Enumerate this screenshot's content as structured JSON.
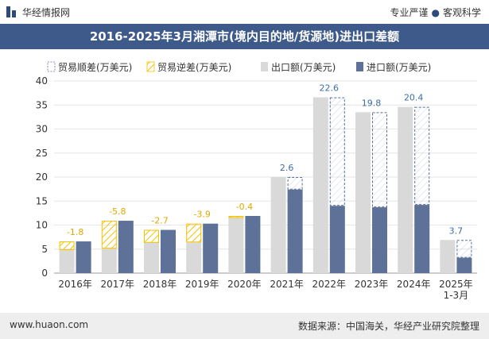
{
  "header": {
    "brand": "华经情报网",
    "tagline_left": "专业严谨",
    "tagline_right": "客观科学"
  },
  "title": "2016-2025年3月湘潭市(境内目的地/货源地)进出口差额",
  "footer": {
    "site": "www.huaon.com",
    "source": "数据来源：中国海关，华经产业研究院整理"
  },
  "colors": {
    "export": "#d9d9d9",
    "import": "#5d7199",
    "surplus_border": "#5d7199",
    "deficit_border": "#f5c200",
    "label_surplus": "#3b6ea8",
    "label_deficit": "#e0a800",
    "title_bg": "#3e5a8a"
  },
  "chart_data": {
    "type": "bar",
    "categories": [
      "2016年",
      "2017年",
      "2018年",
      "2019年",
      "2020年",
      "2021年",
      "2022年",
      "2023年",
      "2024年",
      "2025年\n1-3月"
    ],
    "series": [
      {
        "name": "出口额(万美元)",
        "values": [
          4.8,
          5.1,
          6.3,
          6.4,
          11.5,
          20.0,
          36.6,
          33.5,
          34.6,
          6.9
        ]
      },
      {
        "name": "进口额(万美元)",
        "values": [
          6.6,
          10.9,
          9.0,
          10.3,
          11.9,
          17.4,
          14.0,
          13.7,
          14.2,
          3.2
        ]
      }
    ],
    "balance": [
      -1.8,
      -5.8,
      -2.7,
      -3.9,
      -0.4,
      2.6,
      22.6,
      19.8,
      20.4,
      3.7
    ],
    "balance_labels": [
      "-1.8",
      "-5.8",
      "-2.7",
      "-3.9",
      "-0.4",
      "2.6",
      "22.6",
      "19.8",
      "20.4",
      "3.7"
    ],
    "legend": [
      "贸易顺差(万美元)",
      "贸易逆差(万美元)",
      "出口额(万美元)",
      "进口额(万美元)"
    ],
    "ylim": [
      0,
      40
    ],
    "yticks": [
      0,
      5,
      10,
      15,
      20,
      25,
      30,
      35,
      40
    ],
    "legend_position": "top-left"
  }
}
